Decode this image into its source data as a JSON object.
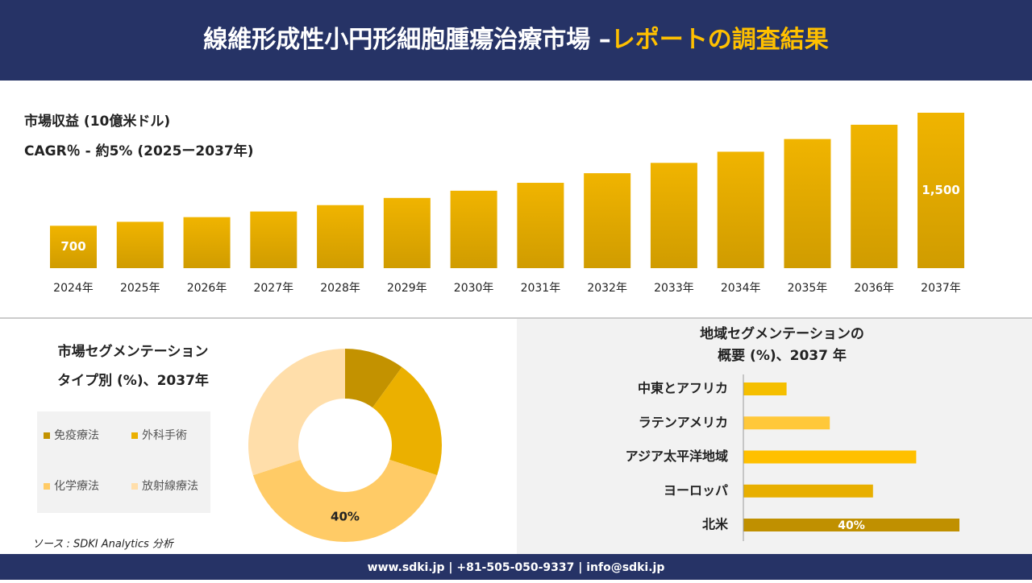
{
  "header": {
    "title_main": "線維形成性小円形細胞腫瘍治療市場 –",
    "title_accent": "レポートの調査結果"
  },
  "chart_data": [
    {
      "type": "bar",
      "title": "市場収益 (10億米ドル)",
      "subtitle": "CAGR％ - 約5% (2025ー2037年)",
      "categories": [
        "2024年",
        "2025年",
        "2026年",
        "2027年",
        "2028年",
        "2029年",
        "2030年",
        "2031年",
        "2032年",
        "2033年",
        "2034年",
        "2035年",
        "2036年",
        "2037年"
      ],
      "values": [
        700,
        728,
        761,
        801,
        846,
        897,
        948,
        1004,
        1072,
        1145,
        1224,
        1314,
        1415,
        1500
      ],
      "value_labels": [
        "700",
        null,
        null,
        null,
        null,
        null,
        null,
        null,
        null,
        null,
        null,
        null,
        null,
        "1,500"
      ],
      "ylim": [
        400,
        1500
      ],
      "color": "#f0b400"
    },
    {
      "type": "donut",
      "title": "市場セグメンテーション",
      "subtitle": "タイプ別 (%)、2037年",
      "categories": [
        "免疫療法",
        "外科手術",
        "化学療法",
        "放射線療法"
      ],
      "values": [
        10,
        20,
        40,
        30
      ],
      "value_labels": [
        null,
        null,
        "40%",
        null
      ],
      "colors": [
        "#c39200",
        "#ebb000",
        "#ffcb66",
        "#ffdeaa"
      ]
    },
    {
      "type": "hbar",
      "title": "地域セグメンテーションの",
      "subtitle": "概要 (%)、2037 年",
      "categories": [
        "中東とアフリカ",
        "ラテンアメリカ",
        "アジア太平洋地域",
        "ヨーロッパ",
        "北米"
      ],
      "values": [
        8,
        16,
        32,
        24,
        40
      ],
      "value_labels": [
        null,
        null,
        null,
        null,
        "40%"
      ],
      "xlim": [
        0,
        40
      ],
      "colors": [
        "#f5bf00",
        "#ffc83a",
        "#ffc000",
        "#e8af00",
        "#c09000"
      ]
    }
  ],
  "source": "ソース : SDKI Analytics 分析",
  "footer": "www.sdki.jp | +81-505-050-9337 | info@sdki.jp"
}
